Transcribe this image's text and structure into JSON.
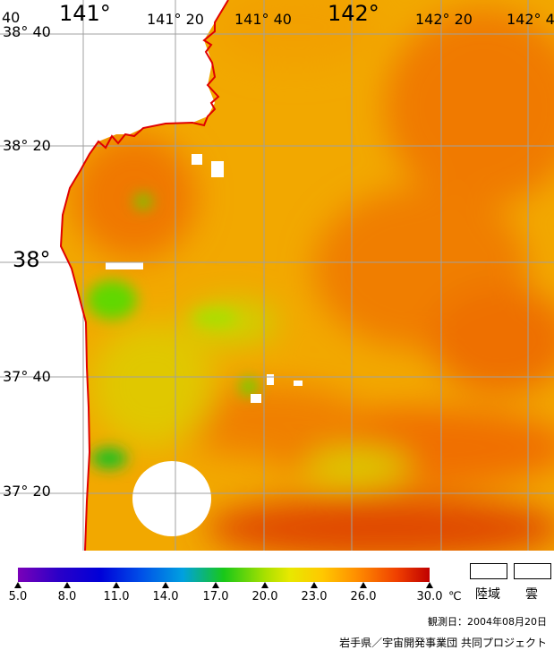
{
  "map": {
    "colors": {
      "sea_base": "#f2a800",
      "sea_warm": "#f07a00",
      "sea_hot": "#e04a00",
      "sea_cool": "#d8d000",
      "sea_green": "#60d800",
      "land": "#ffffff",
      "coastline": "#e00000",
      "grid": "#a0a0a0",
      "cloud": "#ffffff"
    },
    "lon_labels": [
      {
        "text": "40",
        "size": "small"
      },
      {
        "text": "141°",
        "size": "large"
      },
      {
        "text": "141° 20",
        "size": "small"
      },
      {
        "text": "141° 40",
        "size": "small"
      },
      {
        "text": "142°",
        "size": "large"
      },
      {
        "text": "142° 20",
        "size": "small"
      },
      {
        "text": "142° 4",
        "size": "small"
      }
    ],
    "lat_labels": [
      {
        "text": "38° 40",
        "size": "small"
      },
      {
        "text": "38° 20",
        "size": "small"
      },
      {
        "text": "38°",
        "size": "large"
      },
      {
        "text": "37° 40",
        "size": "small"
      },
      {
        "text": "37° 20",
        "size": "small"
      }
    ]
  },
  "legend": {
    "ticks": [
      "5.0",
      "8.0",
      "11.0",
      "14.0",
      "17.0",
      "20.0",
      "23.0",
      "26.0",
      "30.0"
    ],
    "unit": "℃",
    "land_label": "陸域",
    "cloud_label": "雲",
    "scale_colors": [
      "#7a00b8",
      "#0000d8",
      "#00a0e0",
      "#18c818",
      "#e8e800",
      "#ffc800",
      "#ff9000",
      "#c00000"
    ]
  },
  "footer": {
    "date": "観測日：2004年08月20日",
    "credit": "岩手県／宇宙開発事業団 共同プロジェクト"
  }
}
